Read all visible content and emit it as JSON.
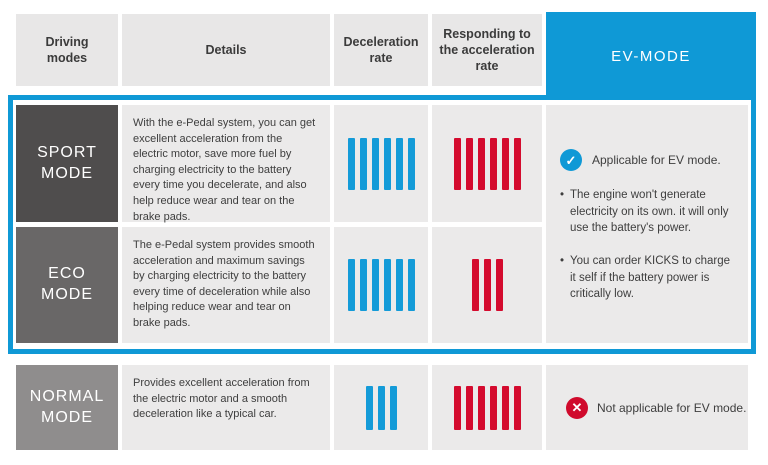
{
  "colors": {
    "accent_blue": "#0f99d6",
    "bar_blue": "#149bd8",
    "bar_red": "#d40b2e",
    "status_red": "#d00a2c",
    "sport_gray": "#4f4d4d",
    "eco_gray": "#696767",
    "normal_gray": "#8f8d8d"
  },
  "header": {
    "columns": [
      {
        "label": "Driving\nmodes"
      },
      {
        "label": "Details"
      },
      {
        "label": "Deceleration\nrate"
      },
      {
        "label": "Responding to\nthe acceleration\nrate"
      },
      {
        "label": "EV-MODE"
      }
    ]
  },
  "rows": [
    {
      "mode_lines": [
        "SPORT",
        "MODE"
      ],
      "details": "With the e-Pedal system, you can get excellent acceleration from the electric motor, save more fuel by charging electricity to the battery every time you decelerate, and also help reduce wear and tear on the brake pads.",
      "deceleration_bars": 6,
      "acceleration_bars": 6
    },
    {
      "mode_lines": [
        "ECO",
        "MODE"
      ],
      "details": "The e-Pedal system provides smooth acceleration and maximum savings by charging electricity to the battery every time of deceleration while also helping reduce wear and tear on brake pads.",
      "deceleration_bars": 6,
      "acceleration_bars": 3
    },
    {
      "mode_lines": [
        "NORMAL",
        "MODE"
      ],
      "details": "Provides excellent acceleration from the electric motor and a smooth deceleration like a typical car.",
      "deceleration_bars": 3,
      "acceleration_bars": 6
    }
  ],
  "ev_mode": {
    "applicable": {
      "icon": "check-circle",
      "status": "Applicable for EV mode.",
      "check_glyph": "✓",
      "notes": [
        "The engine won't generate electricity on its own. it will only use the battery's power.",
        "You can order KICKS to charge it self if the battery power is critically low."
      ]
    },
    "not_applicable": {
      "icon": "x-circle",
      "status": "Not applicable for EV mode.",
      "cross_glyph": "✕"
    }
  }
}
